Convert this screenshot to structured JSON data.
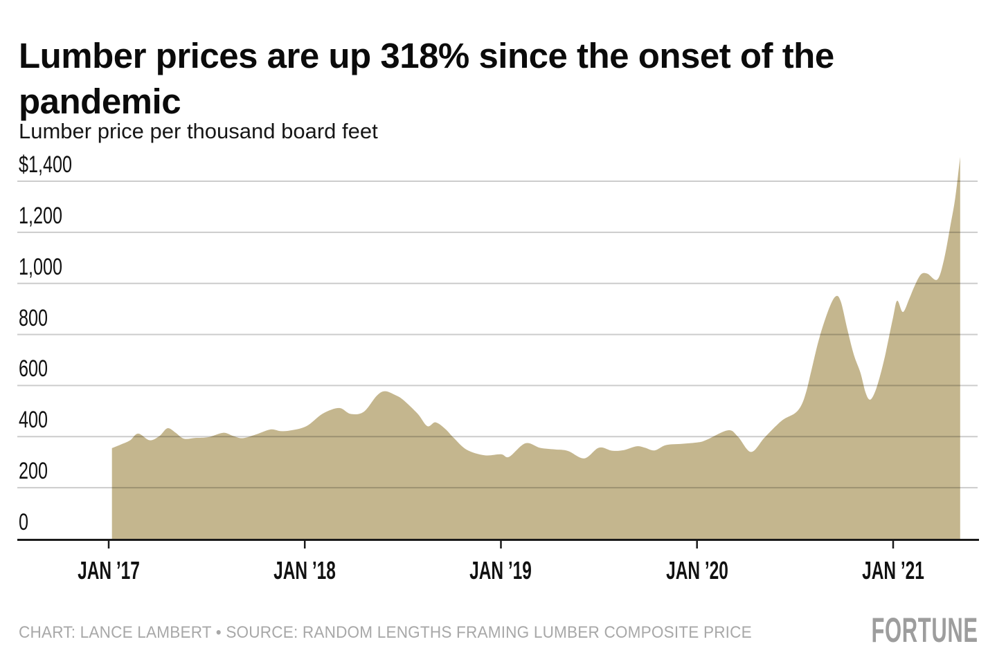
{
  "header": {
    "title": "Lumber prices are up 318% since the onset of the pandemic",
    "subtitle": "Lumber price per thousand board feet"
  },
  "footer": {
    "credit": "CHART: LANCE LAMBERT • SOURCE: RANDOM LENGTHS FRAMING LUMBER COMPOSITE PRICE",
    "logo": "FORTUNE"
  },
  "colors": {
    "area": "#c4b68e",
    "grid": "rgba(0,0,0,0.20)",
    "axis": "#1a1a1a",
    "text": "#111111",
    "background": "#ffffff"
  },
  "chart_data": {
    "type": "area",
    "title": "Lumber prices are up 318% since the onset of the pandemic",
    "subtitle": "Lumber price per thousand board feet",
    "xlabel": "",
    "ylabel": "Lumber price per thousand board feet (USD)",
    "ylim": [
      0,
      1400
    ],
    "grid": "horizontal",
    "legend": "none",
    "x_unit": "months since Jan 2017",
    "yticks": [
      {
        "value": 1400,
        "label": "$1,400"
      },
      {
        "value": 1200,
        "label": "1,200"
      },
      {
        "value": 1000,
        "label": "1,000"
      },
      {
        "value": 800,
        "label": "800"
      },
      {
        "value": 600,
        "label": "600"
      },
      {
        "value": 400,
        "label": "400"
      },
      {
        "value": 200,
        "label": "200"
      },
      {
        "value": 0,
        "label": "0"
      }
    ],
    "xticks": [
      {
        "m": 0,
        "label": "JAN ’17"
      },
      {
        "m": 12,
        "label": "JAN ’18"
      },
      {
        "m": 24,
        "label": "JAN ’19"
      },
      {
        "m": 36,
        "label": "JAN ’20"
      },
      {
        "m": 48,
        "label": "JAN ’21"
      }
    ],
    "series": [
      {
        "name": "Framing lumber composite price",
        "points": [
          [
            0.2,
            355
          ],
          [
            0.7,
            368
          ],
          [
            1.3,
            385
          ],
          [
            1.8,
            412
          ],
          [
            2.5,
            386
          ],
          [
            3.1,
            402
          ],
          [
            3.6,
            433
          ],
          [
            4.1,
            415
          ],
          [
            4.6,
            392
          ],
          [
            5.3,
            395
          ],
          [
            6.1,
            398
          ],
          [
            7.0,
            415
          ],
          [
            7.6,
            403
          ],
          [
            8.2,
            394
          ],
          [
            9.0,
            408
          ],
          [
            9.9,
            428
          ],
          [
            10.5,
            422
          ],
          [
            11.1,
            424
          ],
          [
            12.1,
            441
          ],
          [
            13.1,
            490
          ],
          [
            14.1,
            512
          ],
          [
            14.8,
            489
          ],
          [
            15.6,
            497
          ],
          [
            16.4,
            560
          ],
          [
            16.9,
            578
          ],
          [
            17.5,
            564
          ],
          [
            18.0,
            545
          ],
          [
            18.9,
            490
          ],
          [
            19.5,
            441
          ],
          [
            20.0,
            456
          ],
          [
            20.6,
            430
          ],
          [
            21.1,
            396
          ],
          [
            21.9,
            349
          ],
          [
            23.0,
            327
          ],
          [
            24.0,
            331
          ],
          [
            24.5,
            321
          ],
          [
            25.5,
            374
          ],
          [
            26.4,
            356
          ],
          [
            27.3,
            350
          ],
          [
            28.1,
            344
          ],
          [
            29.1,
            315
          ],
          [
            30.0,
            357
          ],
          [
            30.8,
            345
          ],
          [
            31.5,
            347
          ],
          [
            32.3,
            362
          ],
          [
            32.8,
            357
          ],
          [
            33.4,
            346
          ],
          [
            34.1,
            367
          ],
          [
            35.1,
            372
          ],
          [
            36.1,
            378
          ],
          [
            36.6,
            388
          ],
          [
            37.9,
            425
          ],
          [
            38.5,
            400
          ],
          [
            39.3,
            340
          ],
          [
            40.1,
            394
          ],
          [
            40.8,
            440
          ],
          [
            41.3,
            468
          ],
          [
            42.0,
            492
          ],
          [
            42.4,
            525
          ],
          [
            42.7,
            580
          ],
          [
            43.0,
            660
          ],
          [
            43.5,
            790
          ],
          [
            44.1,
            905
          ],
          [
            44.5,
            950
          ],
          [
            44.8,
            928
          ],
          [
            45.2,
            820
          ],
          [
            45.6,
            720
          ],
          [
            46.0,
            650
          ],
          [
            46.3,
            575
          ],
          [
            46.55,
            545
          ],
          [
            46.8,
            562
          ],
          [
            47.1,
            615
          ],
          [
            47.5,
            715
          ],
          [
            48.0,
            868
          ],
          [
            48.25,
            932
          ],
          [
            48.6,
            888
          ],
          [
            49.0,
            942
          ],
          [
            49.3,
            988
          ],
          [
            49.7,
            1035
          ],
          [
            50.1,
            1038
          ],
          [
            50.7,
            1015
          ],
          [
            51.1,
            1090
          ],
          [
            51.5,
            1225
          ],
          [
            51.8,
            1335
          ],
          [
            52.1,
            1495
          ]
        ]
      }
    ]
  }
}
